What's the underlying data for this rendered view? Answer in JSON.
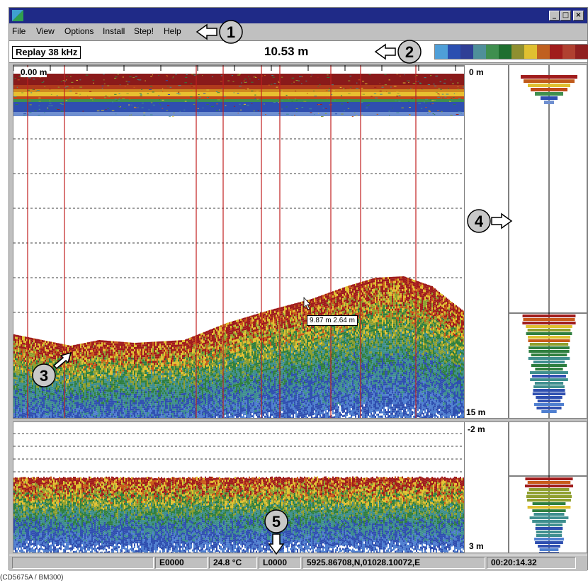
{
  "menu": {
    "items": [
      "File",
      "View",
      "Options",
      "Install",
      "Step!",
      "Help"
    ]
  },
  "info": {
    "mode": "Replay 38 kHz",
    "current_depth": "10.53 m"
  },
  "color_scale": [
    "#4f9fd8",
    "#2b4fb0",
    "#2f3f96",
    "#4f8f9a",
    "#3f8f4f",
    "#1f6f2f",
    "#8f8f2f",
    "#e0c030",
    "#c06020",
    "#a01c1c",
    "#b04030",
    "#902020"
  ],
  "echogram": {
    "range_label": "0.00 m",
    "top_depth": "0 m",
    "bottom_depth": "15 m",
    "cursor_readout": "9.87 m   2.64 m"
  },
  "bottom_lock": {
    "top_depth": "-2 m",
    "bottom_depth": "3 m"
  },
  "status": {
    "event": "E0000",
    "temperature": "24.8 °C",
    "log": "L0000",
    "position": "5925.86708,N,01028.10072,E",
    "time": "00:20:14.32"
  },
  "callouts": [
    "1",
    "2",
    "3",
    "4",
    "5"
  ],
  "caption": "(CD5675A / BM300)"
}
